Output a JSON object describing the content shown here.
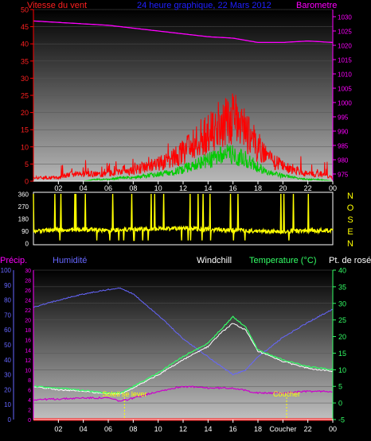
{
  "chart_data": [
    {
      "type": "line",
      "title": "24 heure graphique, 22 Mars 2012",
      "left_axis_label": "Vitesse du vent",
      "right_axis_label": "Barometre",
      "x_ticks": [
        "02",
        "04",
        "06",
        "08",
        "10",
        "12",
        "14",
        "16",
        "18",
        "20",
        "22",
        "00"
      ],
      "x_range_hours": [
        0,
        24
      ],
      "left_axis": {
        "ticks": [
          0,
          5,
          10,
          15,
          20,
          25,
          30,
          35,
          40,
          45,
          50
        ],
        "range": [
          0,
          50
        ]
      },
      "right_axis": {
        "ticks": [
          975,
          980,
          985,
          990,
          995,
          1000,
          1005,
          1010,
          1015,
          1020,
          1025,
          1030
        ],
        "range": [
          972.5,
          1032.5
        ]
      },
      "series": [
        {
          "name": "Vitesse du vent",
          "color": "#ff0000",
          "x": [
            0,
            1,
            2,
            3,
            4,
            5,
            6,
            7,
            8,
            9,
            10,
            11,
            12,
            13,
            14,
            15,
            16,
            17,
            18,
            19,
            20,
            21,
            22,
            23,
            24
          ],
          "y": [
            1,
            1,
            1,
            2,
            2,
            2,
            2,
            3,
            3,
            4,
            5,
            6,
            8,
            11,
            13,
            16,
            17,
            14,
            9,
            6,
            4,
            3,
            2,
            2,
            1
          ]
        },
        {
          "name": "Rafales",
          "color": "#00cc00",
          "x": [
            0,
            1,
            2,
            3,
            4,
            5,
            6,
            7,
            8,
            9,
            10,
            11,
            12,
            13,
            14,
            15,
            16,
            17,
            18,
            19,
            20,
            21,
            22,
            23,
            24
          ],
          "y": [
            0,
            0,
            0,
            0,
            0,
            0.5,
            0.5,
            1,
            1,
            1.5,
            2,
            2.5,
            3.5,
            5,
            6,
            7.5,
            8,
            6.5,
            4,
            2.5,
            1.5,
            1,
            0.5,
            0.5,
            0
          ]
        },
        {
          "name": "Barometre",
          "color": "#ff00ff",
          "x": [
            0,
            2,
            4,
            6,
            8,
            10,
            12,
            14,
            16,
            18,
            20,
            22,
            24
          ],
          "y": [
            1028.5,
            1028,
            1027.5,
            1027,
            1026,
            1025,
            1024,
            1023,
            1022.5,
            1021,
            1021,
            1021.5,
            1021
          ]
        }
      ]
    },
    {
      "type": "line",
      "right_label": "NOSEN",
      "x_range_hours": [
        0,
        24
      ],
      "y_axis": {
        "ticks": [
          0,
          90,
          180,
          270,
          360
        ],
        "range": [
          0,
          360
        ]
      },
      "series": [
        {
          "name": "Direction du vent",
          "color": "#ffff00",
          "x": [
            0,
            2,
            4,
            6,
            8,
            10,
            12,
            14,
            16,
            18,
            20,
            22,
            24
          ],
          "y": [
            90,
            95,
            100,
            95,
            100,
            105,
            110,
            100,
            95,
            90,
            85,
            90,
            95
          ]
        }
      ]
    },
    {
      "type": "line",
      "labels": {
        "precip": "Précip.",
        "humidity": "Humidité",
        "windchill": "Windchill",
        "temperature": "Temperature (°C)",
        "dewpoint": "Pt. de rosée"
      },
      "annotations": {
        "sunrise": "Soleil se lever",
        "sunset": "Coucher"
      },
      "annotation_hours": {
        "sunrise": 7.3,
        "sunset": 20.3
      },
      "x_ticks": [
        "02",
        "04",
        "06",
        "08",
        "10",
        "12",
        "14",
        "16",
        "18",
        "Coucher",
        "22",
        "00"
      ],
      "x_range_hours": [
        0,
        24
      ],
      "humidity_axis": {
        "ticks": [
          0,
          10,
          20,
          30,
          40,
          50,
          60,
          70,
          80,
          90,
          100
        ],
        "range": [
          0,
          100
        ]
      },
      "precip_axis": {
        "ticks": [
          0,
          2,
          4,
          6,
          8,
          10,
          12,
          14,
          16,
          18,
          20,
          22,
          24,
          26,
          28,
          30
        ],
        "range": [
          0,
          30
        ]
      },
      "temperature_axis": {
        "ticks": [
          -5,
          0,
          5,
          10,
          15,
          20,
          25,
          30,
          35,
          40
        ],
        "range": [
          -5,
          40
        ]
      },
      "series": [
        {
          "name": "Humidité",
          "color": "#6666ff",
          "x": [
            0,
            2,
            4,
            6,
            7,
            8,
            10,
            12,
            14,
            15,
            16,
            17,
            18,
            20,
            22,
            24
          ],
          "y": [
            75,
            80,
            84,
            87,
            88,
            84,
            70,
            54,
            42,
            36,
            30,
            33,
            42,
            55,
            65,
            74
          ]
        },
        {
          "name": "Temperature (°C)",
          "color": "#33ff66",
          "x": [
            0,
            2,
            4,
            6,
            7,
            8,
            10,
            12,
            14,
            15,
            16,
            17,
            18,
            20,
            22,
            24
          ],
          "y": [
            5,
            4.5,
            3.8,
            3,
            3,
            5,
            9,
            14,
            18,
            22,
            26,
            23,
            16,
            13,
            11,
            10
          ]
        },
        {
          "name": "Pt. de rosée",
          "color": "#ffffff",
          "x": [
            0,
            2,
            4,
            6,
            7,
            8,
            10,
            12,
            14,
            15,
            16,
            17,
            18,
            20,
            22,
            24
          ],
          "y": [
            5,
            4,
            3.5,
            2.8,
            2.8,
            4.5,
            8.5,
            13,
            17,
            21,
            24,
            22,
            15.5,
            12.5,
            10.5,
            9.5
          ]
        },
        {
          "name": "Windchill",
          "color": "#cc00cc",
          "x": [
            0,
            2,
            4,
            6,
            7,
            8,
            10,
            12,
            14,
            16,
            18,
            20,
            22,
            24
          ],
          "y": [
            1,
            1.2,
            1.5,
            1.5,
            0.5,
            1.5,
            3.5,
            5,
            4.5,
            4.5,
            3,
            3,
            3.5,
            3.5
          ]
        },
        {
          "name": "Précip.",
          "color": "#ff0000",
          "x": [
            0,
            24
          ],
          "y": [
            0,
            0
          ]
        }
      ]
    }
  ]
}
